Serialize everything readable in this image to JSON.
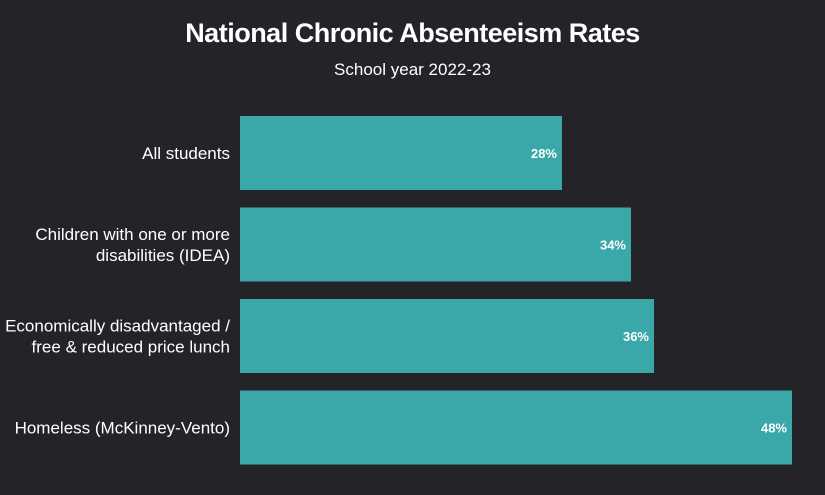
{
  "chart_data": {
    "type": "bar",
    "orientation": "horizontal",
    "title": "National Chronic Absenteeism Rates",
    "subtitle": "School year 2022-23",
    "categories": [
      [
        "All students"
      ],
      [
        "Children with one or more",
        "disabilities (IDEA)"
      ],
      [
        "Economically disadvantaged /",
        "free & reduced price lunch"
      ],
      [
        "Homeless (McKinney-Vento)"
      ]
    ],
    "values": [
      28,
      34,
      36,
      48
    ],
    "value_labels": [
      "28%",
      "34%",
      "36%",
      "48%"
    ],
    "xlim": [
      0,
      48
    ],
    "grid": false,
    "legend": "none",
    "colors": {
      "background": "#242428",
      "bar": "#3aa8a8",
      "text": "#ffffff"
    }
  }
}
